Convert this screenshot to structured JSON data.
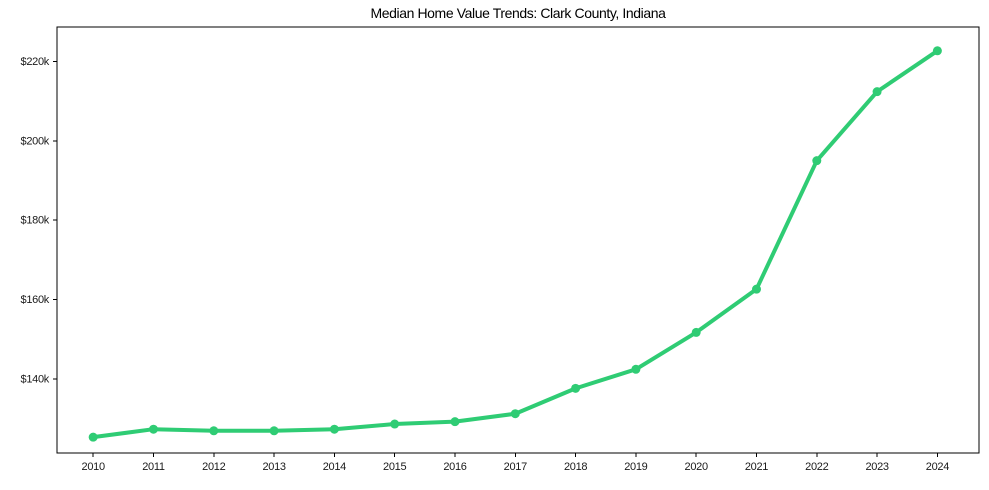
{
  "chart_data": {
    "type": "line",
    "title": "Median Home Value Trends: Clark County, Indiana",
    "xlabel": "",
    "ylabel": "",
    "grid": false,
    "legend": false,
    "x": [
      2010,
      2011,
      2012,
      2013,
      2014,
      2015,
      2016,
      2017,
      2018,
      2019,
      2020,
      2021,
      2022,
      2023,
      2024
    ],
    "xtick_labels": [
      "2010",
      "2011",
      "2012",
      "2013",
      "2014",
      "2015",
      "2016",
      "2017",
      "2018",
      "2019",
      "2020",
      "2021",
      "2022",
      "2023",
      "2024"
    ],
    "ytick_values": [
      140000,
      160000,
      180000,
      200000,
      220000
    ],
    "ytick_labels": [
      "$140k",
      "$160k",
      "$180k",
      "$200k",
      "$220k"
    ],
    "xlim": [
      2009.4,
      2024.69
    ],
    "ylim": [
      121300,
      228700
    ],
    "series": [
      {
        "name": "Median Home Value",
        "color": "#2fcc74",
        "marker": "circle",
        "values": [
          125300,
          127300,
          126900,
          126900,
          127300,
          128600,
          129200,
          131200,
          137600,
          142400,
          151700,
          162600,
          195000,
          212400,
          222700
        ]
      }
    ],
    "colors": {
      "line": "#2fcc74",
      "spine": "#000000",
      "tick_text": "#1a1a1a",
      "background": "#ffffff"
    }
  }
}
